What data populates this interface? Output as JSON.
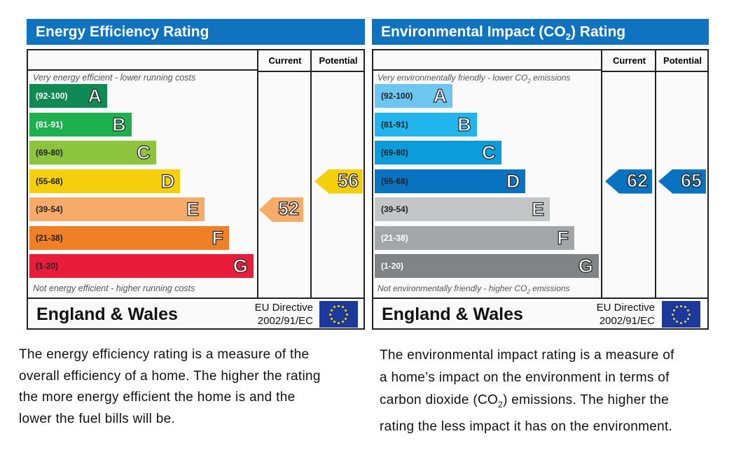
{
  "charts_common": {
    "current_label": "Current",
    "potential_label": "Potential",
    "region": "England & Wales",
    "eu_line1": "EU Directive",
    "eu_line2": "2002/91/EC"
  },
  "chart_data": [
    {
      "type": "table",
      "title": "Energy Efficiency Rating",
      "top_note": "Very energy efficient - lower running costs",
      "bottom_note": "Not energy efficient - higher running costs",
      "bands": [
        {
          "letter": "A",
          "range": "(92-100)",
          "min": 92,
          "max": 100,
          "color": "#0f8a52",
          "range_color": "#ffffff"
        },
        {
          "letter": "B",
          "range": "(81-91)",
          "min": 81,
          "max": 91,
          "color": "#1eb04e",
          "range_color": "#ffffff"
        },
        {
          "letter": "C",
          "range": "(69-80)",
          "min": 69,
          "max": 80,
          "color": "#8cc43e",
          "range_color": "#222222"
        },
        {
          "letter": "D",
          "range": "(55-68)",
          "min": 55,
          "max": 68,
          "color": "#f5cf0b",
          "range_color": "#222222"
        },
        {
          "letter": "E",
          "range": "(39-54)",
          "min": 39,
          "max": 54,
          "color": "#f6ab68",
          "range_color": "#222222"
        },
        {
          "letter": "F",
          "range": "(21-38)",
          "min": 21,
          "max": 38,
          "color": "#ef8028",
          "range_color": "#222222"
        },
        {
          "letter": "G",
          "range": "(1-20)",
          "min": 1,
          "max": 20,
          "color": "#e71d3a",
          "range_color": "#222222"
        }
      ],
      "current": {
        "value": 52,
        "color": "#f6ab68"
      },
      "potential": {
        "value": 56,
        "color": "#f5cf0b"
      },
      "description": [
        "The energy efficiency rating is a measure of the",
        "overall efficiency of a home. The higher the rating",
        "the more energy efficient the home is and the",
        "lower the fuel bills will be."
      ]
    },
    {
      "type": "table",
      "title": "Environmental Impact (CO2) Rating",
      "title_pre": "Environmental Impact (CO",
      "title_sub": "2",
      "title_post": ") Rating",
      "top_note": "Very environmentally friendly - lower CO2 emissions",
      "top_note_pre": "Very environmentally friendly - lower CO",
      "top_note_post": " emissions",
      "bottom_note": "Not environmentally friendly - higher CO2 emissions",
      "bottom_note_pre": "Not environmentally friendly - higher CO",
      "bottom_note_post": " emissions",
      "bands": [
        {
          "letter": "A",
          "range": "(92-100)",
          "min": 92,
          "max": 100,
          "color": "#6cc6ef",
          "range_color": "#222222"
        },
        {
          "letter": "B",
          "range": "(81-91)",
          "min": 81,
          "max": 91,
          "color": "#22b4ec",
          "range_color": "#222222"
        },
        {
          "letter": "C",
          "range": "(69-80)",
          "min": 69,
          "max": 80,
          "color": "#0b9ddb",
          "range_color": "#222222"
        },
        {
          "letter": "D",
          "range": "(55-68)",
          "min": 55,
          "max": 68,
          "color": "#0873c1",
          "range_color": "#222222"
        },
        {
          "letter": "E",
          "range": "(39-54)",
          "min": 39,
          "max": 54,
          "color": "#c3c5c7",
          "range_color": "#222222"
        },
        {
          "letter": "F",
          "range": "(21-38)",
          "min": 21,
          "max": 38,
          "color": "#a3a5a8",
          "range_color": "#ffffff"
        },
        {
          "letter": "G",
          "range": "(1-20)",
          "min": 1,
          "max": 20,
          "color": "#818385",
          "range_color": "#ffffff"
        }
      ],
      "current": {
        "value": 62,
        "color": "#0873c1"
      },
      "potential": {
        "value": 65,
        "color": "#0873c1"
      },
      "description_lines": [
        "The environmental impact rating is a measure of",
        "a home’s impact on the environment in terms of"
      ],
      "description_co2_pre": "carbon dioxide (CO",
      "description_co2_sub": "2",
      "description_co2_post": ") emissions. The higher the",
      "description_last": "rating the less impact it has on the environment."
    }
  ]
}
